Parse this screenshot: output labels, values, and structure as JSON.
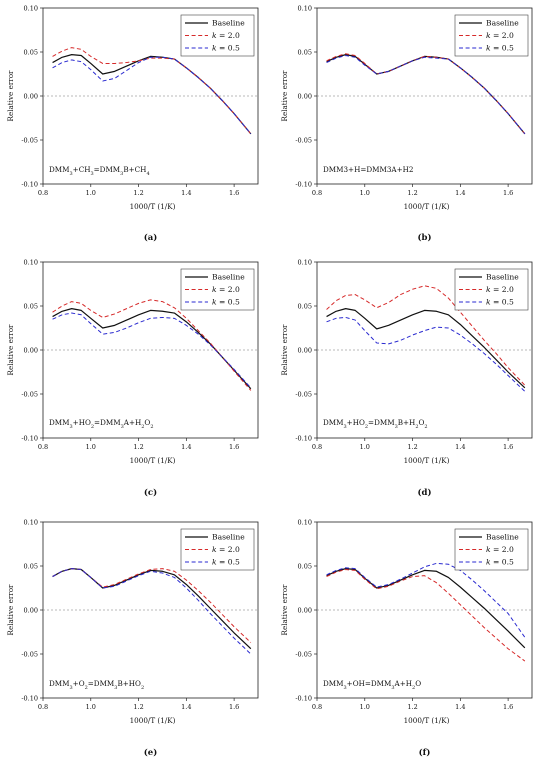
{
  "figure": {
    "axis_titles": {
      "x": "1000/T (1/K)",
      "y": "Relative error"
    },
    "legend": [
      "Baseline",
      "k = 2.0",
      "k = 0.5"
    ],
    "colors": {
      "Baseline": "#111111",
      "k = 2.0": "#d62a2a",
      "k = 0.5": "#2a2ad0",
      "zero": "#777777"
    }
  },
  "chart_data": [
    {
      "type": "line",
      "caption": "(a)",
      "annotation": {
        "base": [
          "DMM",
          "3",
          "+CH",
          "3",
          "=DMM",
          "3",
          "B+CH",
          "4"
        ]
      },
      "xlabel": "1000/T (1/K)",
      "ylabel": "Relative error",
      "xlim": [
        0.8,
        1.7
      ],
      "ylim": [
        -0.1,
        0.1
      ],
      "xticks": [
        "0.8",
        "1.0",
        "1.2",
        "1.4",
        "1.6"
      ],
      "yticks": [
        "-0.10",
        "-0.05",
        "0.00",
        "0.05",
        "0.10"
      ],
      "legend_position": "top-right",
      "zero_line": true,
      "series": [
        {
          "name": "Baseline",
          "x": [
            0.84,
            0.88,
            0.92,
            0.96,
            1.0,
            1.05,
            1.1,
            1.15,
            1.2,
            1.25,
            1.3,
            1.35,
            1.4,
            1.45,
            1.5,
            1.55,
            1.6,
            1.67
          ],
          "y": [
            0.038,
            0.044,
            0.047,
            0.046,
            0.037,
            0.025,
            0.028,
            0.034,
            0.04,
            0.045,
            0.044,
            0.042,
            0.032,
            0.021,
            0.009,
            -0.005,
            -0.02,
            -0.043
          ]
        },
        {
          "name": "k = 2.0",
          "x": [
            0.84,
            0.88,
            0.92,
            0.96,
            1.0,
            1.05,
            1.1,
            1.15,
            1.2,
            1.25,
            1.3,
            1.35,
            1.4,
            1.45,
            1.5,
            1.55,
            1.6,
            1.67
          ],
          "y": [
            0.045,
            0.051,
            0.055,
            0.053,
            0.045,
            0.037,
            0.037,
            0.038,
            0.04,
            0.043,
            0.043,
            0.042,
            0.032,
            0.021,
            0.009,
            -0.005,
            -0.02,
            -0.043
          ]
        },
        {
          "name": "k = 0.5",
          "x": [
            0.84,
            0.88,
            0.92,
            0.96,
            1.0,
            1.05,
            1.1,
            1.15,
            1.2,
            1.25,
            1.3,
            1.35,
            1.4,
            1.45,
            1.5,
            1.55,
            1.6,
            1.67
          ],
          "y": [
            0.032,
            0.038,
            0.041,
            0.039,
            0.03,
            0.017,
            0.02,
            0.029,
            0.038,
            0.044,
            0.044,
            0.042,
            0.032,
            0.021,
            0.009,
            -0.005,
            -0.02,
            -0.043
          ]
        }
      ]
    },
    {
      "type": "line",
      "caption": "(b)",
      "annotation": {
        "base": [
          "DMM3+H=DMM3A+H2"
        ]
      },
      "xlabel": "1000/T (1/K)",
      "ylabel": "Relative error",
      "xlim": [
        0.8,
        1.7
      ],
      "ylim": [
        -0.1,
        0.1
      ],
      "xticks": [
        "0.8",
        "1.0",
        "1.2",
        "1.4",
        "1.6"
      ],
      "yticks": [
        "-0.10",
        "-0.05",
        "0.00",
        "0.05",
        "0.10"
      ],
      "legend_position": "top-right",
      "zero_line": true,
      "series": [
        {
          "name": "Baseline",
          "x": [
            0.84,
            0.88,
            0.92,
            0.96,
            1.0,
            1.05,
            1.1,
            1.15,
            1.2,
            1.25,
            1.3,
            1.35,
            1.4,
            1.45,
            1.5,
            1.55,
            1.6,
            1.67
          ],
          "y": [
            0.039,
            0.044,
            0.047,
            0.045,
            0.036,
            0.025,
            0.028,
            0.034,
            0.04,
            0.045,
            0.044,
            0.042,
            0.032,
            0.021,
            0.009,
            -0.005,
            -0.02,
            -0.043
          ]
        },
        {
          "name": "k = 2.0",
          "x": [
            0.84,
            0.88,
            0.92,
            0.96,
            1.0,
            1.05,
            1.1,
            1.15,
            1.2,
            1.25,
            1.3,
            1.35,
            1.4,
            1.45,
            1.5,
            1.55,
            1.6,
            1.67
          ],
          "y": [
            0.04,
            0.045,
            0.048,
            0.046,
            0.037,
            0.025,
            0.028,
            0.034,
            0.04,
            0.045,
            0.044,
            0.042,
            0.032,
            0.021,
            0.009,
            -0.005,
            -0.02,
            -0.043
          ]
        },
        {
          "name": "k = 0.5",
          "x": [
            0.84,
            0.88,
            0.92,
            0.96,
            1.0,
            1.05,
            1.1,
            1.15,
            1.2,
            1.25,
            1.3,
            1.35,
            1.4,
            1.45,
            1.5,
            1.55,
            1.6,
            1.67
          ],
          "y": [
            0.038,
            0.043,
            0.046,
            0.044,
            0.035,
            0.025,
            0.028,
            0.034,
            0.04,
            0.044,
            0.043,
            0.042,
            0.032,
            0.021,
            0.009,
            -0.005,
            -0.02,
            -0.043
          ]
        }
      ]
    },
    {
      "type": "line",
      "caption": "(c)",
      "annotation": {
        "base": [
          "DMM",
          "3",
          "+HO",
          "2",
          "=DMM",
          "3",
          "A+H",
          "2",
          "O",
          "2"
        ]
      },
      "xlabel": "1000/T (1/K)",
      "ylabel": "Relative error",
      "xlim": [
        0.8,
        1.7
      ],
      "ylim": [
        -0.1,
        0.1
      ],
      "xticks": [
        "0.8",
        "1.0",
        "1.2",
        "1.4",
        "1.6"
      ],
      "yticks": [
        "-0.10",
        "-0.05",
        "0.00",
        "0.05",
        "0.10"
      ],
      "legend_position": "top-right",
      "zero_line": true,
      "series": [
        {
          "name": "Baseline",
          "x": [
            0.84,
            0.88,
            0.92,
            0.96,
            1.0,
            1.05,
            1.1,
            1.15,
            1.2,
            1.25,
            1.3,
            1.35,
            1.4,
            1.45,
            1.5,
            1.55,
            1.6,
            1.67
          ],
          "y": [
            0.038,
            0.044,
            0.047,
            0.045,
            0.036,
            0.025,
            0.028,
            0.034,
            0.04,
            0.045,
            0.044,
            0.042,
            0.032,
            0.02,
            0.007,
            -0.008,
            -0.023,
            -0.044
          ]
        },
        {
          "name": "k = 2.0",
          "x": [
            0.84,
            0.88,
            0.92,
            0.96,
            1.0,
            1.05,
            1.1,
            1.15,
            1.2,
            1.25,
            1.3,
            1.35,
            1.4,
            1.45,
            1.5,
            1.55,
            1.6,
            1.67
          ],
          "y": [
            0.043,
            0.05,
            0.055,
            0.053,
            0.045,
            0.037,
            0.041,
            0.047,
            0.053,
            0.057,
            0.055,
            0.048,
            0.036,
            0.022,
            0.008,
            -0.008,
            -0.024,
            -0.046
          ]
        },
        {
          "name": "k = 0.5",
          "x": [
            0.84,
            0.88,
            0.92,
            0.96,
            1.0,
            1.05,
            1.1,
            1.15,
            1.2,
            1.25,
            1.3,
            1.35,
            1.4,
            1.45,
            1.5,
            1.55,
            1.6,
            1.67
          ],
          "y": [
            0.035,
            0.04,
            0.042,
            0.04,
            0.03,
            0.018,
            0.02,
            0.025,
            0.031,
            0.036,
            0.037,
            0.036,
            0.028,
            0.018,
            0.006,
            -0.008,
            -0.022,
            -0.043
          ]
        }
      ]
    },
    {
      "type": "line",
      "caption": "(d)",
      "annotation": {
        "base": [
          "DMM",
          "3",
          "+HO",
          "2",
          "=DMM",
          "3",
          "B+H",
          "2",
          "O",
          "2"
        ]
      },
      "xlabel": "1000/T (1/K)",
      "ylabel": "Relative error",
      "xlim": [
        0.8,
        1.7
      ],
      "ylim": [
        -0.1,
        0.1
      ],
      "xticks": [
        "0.8",
        "1.0",
        "1.2",
        "1.4",
        "1.6"
      ],
      "yticks": [
        "-0.10",
        "-0.05",
        "0.00",
        "0.05",
        "0.10"
      ],
      "legend_position": "top-right",
      "zero_line": true,
      "series": [
        {
          "name": "Baseline",
          "x": [
            0.84,
            0.88,
            0.92,
            0.96,
            1.0,
            1.05,
            1.1,
            1.15,
            1.2,
            1.25,
            1.3,
            1.35,
            1.4,
            1.45,
            1.5,
            1.55,
            1.6,
            1.67
          ],
          "y": [
            0.038,
            0.044,
            0.047,
            0.045,
            0.036,
            0.024,
            0.028,
            0.034,
            0.04,
            0.045,
            0.044,
            0.04,
            0.029,
            0.016,
            0.003,
            -0.011,
            -0.025,
            -0.043
          ]
        },
        {
          "name": "k = 2.0",
          "x": [
            0.84,
            0.88,
            0.92,
            0.96,
            1.0,
            1.05,
            1.1,
            1.15,
            1.2,
            1.25,
            1.3,
            1.35,
            1.4,
            1.45,
            1.5,
            1.55,
            1.6,
            1.67
          ],
          "y": [
            0.046,
            0.056,
            0.062,
            0.063,
            0.057,
            0.048,
            0.054,
            0.063,
            0.069,
            0.073,
            0.07,
            0.059,
            0.043,
            0.027,
            0.011,
            -0.004,
            -0.02,
            -0.04
          ]
        },
        {
          "name": "k = 0.5",
          "x": [
            0.84,
            0.88,
            0.92,
            0.96,
            1.0,
            1.05,
            1.1,
            1.15,
            1.2,
            1.25,
            1.3,
            1.35,
            1.4,
            1.45,
            1.5,
            1.55,
            1.6,
            1.67
          ],
          "y": [
            0.032,
            0.036,
            0.037,
            0.034,
            0.022,
            0.008,
            0.007,
            0.011,
            0.017,
            0.022,
            0.026,
            0.025,
            0.017,
            0.007,
            -0.004,
            -0.016,
            -0.029,
            -0.047
          ]
        }
      ]
    },
    {
      "type": "line",
      "caption": "(e)",
      "annotation": {
        "base": [
          "DMM",
          "3",
          "+O",
          "2",
          "=DMM",
          "3",
          "B+HO",
          "2"
        ]
      },
      "xlabel": "1000/T (1/K)",
      "ylabel": "Relative error",
      "xlim": [
        0.8,
        1.7
      ],
      "ylim": [
        -0.1,
        0.1
      ],
      "xticks": [
        "0.8",
        "1.0",
        "1.2",
        "1.4",
        "1.6"
      ],
      "yticks": [
        "-0.10",
        "-0.05",
        "0.00",
        "0.05",
        "0.10"
      ],
      "legend_position": "top-right",
      "zero_line": true,
      "series": [
        {
          "name": "Baseline",
          "x": [
            0.84,
            0.88,
            0.92,
            0.96,
            1.0,
            1.05,
            1.1,
            1.15,
            1.2,
            1.25,
            1.3,
            1.35,
            1.4,
            1.45,
            1.5,
            1.55,
            1.6,
            1.67
          ],
          "y": [
            0.038,
            0.044,
            0.047,
            0.046,
            0.037,
            0.025,
            0.028,
            0.034,
            0.04,
            0.045,
            0.044,
            0.04,
            0.029,
            0.016,
            0.002,
            -0.012,
            -0.026,
            -0.044
          ]
        },
        {
          "name": "k = 2.0",
          "x": [
            0.84,
            0.88,
            0.92,
            0.96,
            1.0,
            1.05,
            1.1,
            1.15,
            1.2,
            1.25,
            1.3,
            1.35,
            1.4,
            1.45,
            1.5,
            1.55,
            1.6,
            1.67
          ],
          "y": [
            0.038,
            0.044,
            0.047,
            0.046,
            0.037,
            0.026,
            0.029,
            0.035,
            0.041,
            0.046,
            0.047,
            0.044,
            0.034,
            0.022,
            0.009,
            -0.005,
            -0.019,
            -0.037
          ]
        },
        {
          "name": "k = 0.5",
          "x": [
            0.84,
            0.88,
            0.92,
            0.96,
            1.0,
            1.05,
            1.1,
            1.15,
            1.2,
            1.25,
            1.3,
            1.35,
            1.4,
            1.45,
            1.5,
            1.55,
            1.6,
            1.67
          ],
          "y": [
            0.038,
            0.044,
            0.047,
            0.046,
            0.037,
            0.025,
            0.027,
            0.033,
            0.039,
            0.044,
            0.042,
            0.037,
            0.025,
            0.011,
            -0.004,
            -0.018,
            -0.032,
            -0.05
          ]
        }
      ]
    },
    {
      "type": "line",
      "caption": "(f)",
      "annotation": {
        "base": [
          "DMM",
          "3",
          "+OH=DMM",
          "3",
          "A+H",
          "2",
          "O"
        ]
      },
      "xlabel": "1000/T (1/K)",
      "ylabel": "Relative error",
      "xlim": [
        0.8,
        1.7
      ],
      "ylim": [
        -0.1,
        0.1
      ],
      "xticks": [
        "0.8",
        "1.0",
        "1.2",
        "1.4",
        "1.6"
      ],
      "yticks": [
        "-0.10",
        "-0.05",
        "0.00",
        "0.05",
        "0.10"
      ],
      "legend_position": "top-right",
      "zero_line": true,
      "series": [
        {
          "name": "Baseline",
          "x": [
            0.84,
            0.88,
            0.92,
            0.96,
            1.0,
            1.05,
            1.1,
            1.15,
            1.2,
            1.25,
            1.3,
            1.35,
            1.4,
            1.45,
            1.5,
            1.55,
            1.6,
            1.67
          ],
          "y": [
            0.039,
            0.044,
            0.047,
            0.046,
            0.036,
            0.025,
            0.028,
            0.034,
            0.04,
            0.045,
            0.044,
            0.037,
            0.026,
            0.014,
            0.002,
            -0.011,
            -0.024,
            -0.043
          ]
        },
        {
          "name": "k = 2.0",
          "x": [
            0.84,
            0.88,
            0.92,
            0.96,
            1.0,
            1.05,
            1.1,
            1.15,
            1.2,
            1.25,
            1.3,
            1.35,
            1.4,
            1.45,
            1.5,
            1.55,
            1.6,
            1.67
          ],
          "y": [
            0.038,
            0.043,
            0.046,
            0.045,
            0.035,
            0.024,
            0.027,
            0.033,
            0.038,
            0.039,
            0.031,
            0.019,
            0.006,
            -0.007,
            -0.02,
            -0.032,
            -0.044,
            -0.058
          ]
        },
        {
          "name": "k = 0.5",
          "x": [
            0.84,
            0.88,
            0.92,
            0.96,
            1.0,
            1.05,
            1.1,
            1.15,
            1.2,
            1.25,
            1.3,
            1.35,
            1.4,
            1.45,
            1.5,
            1.55,
            1.6,
            1.67
          ],
          "y": [
            0.04,
            0.045,
            0.048,
            0.047,
            0.037,
            0.026,
            0.029,
            0.035,
            0.042,
            0.049,
            0.053,
            0.052,
            0.045,
            0.034,
            0.022,
            0.009,
            -0.004,
            -0.031
          ]
        }
      ]
    }
  ]
}
